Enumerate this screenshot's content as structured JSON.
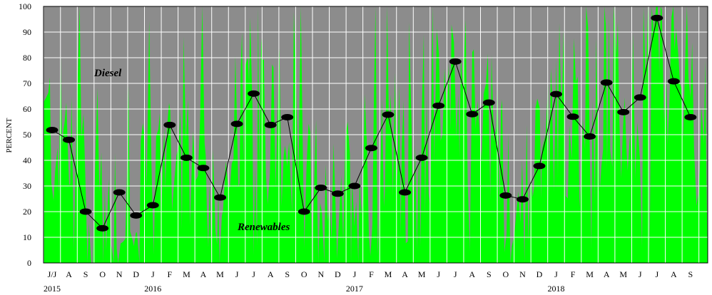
{
  "chart_data": {
    "type": "line",
    "title": "",
    "xlabel": "",
    "ylabel": "PERCENT",
    "ylim": [
      0,
      100
    ],
    "yticks": [
      0,
      10,
      20,
      30,
      40,
      50,
      60,
      70,
      80,
      90,
      100
    ],
    "grid": true,
    "month_labels": [
      "J/J",
      "A",
      "S",
      "O",
      "N",
      "D",
      "J",
      "F",
      "M",
      "A",
      "M",
      "J",
      "J",
      "A",
      "S",
      "O",
      "N",
      "D",
      "J",
      "F",
      "M",
      "A",
      "M",
      "J",
      "J",
      "A",
      "S",
      "O",
      "N",
      "D",
      "J",
      "F",
      "M",
      "A",
      "M",
      "J",
      "J",
      "A",
      "S"
    ],
    "year_labels": [
      {
        "text": "2015",
        "month_index": 0
      },
      {
        "text": "2016",
        "month_index": 6
      },
      {
        "text": "2017",
        "month_index": 18
      },
      {
        "text": "2018",
        "month_index": 30
      }
    ],
    "series": [
      {
        "values": [
          51.8,
          48,
          20,
          13.5,
          27.5,
          18.5,
          22.5,
          53.8,
          41,
          37,
          25.5,
          54.2,
          66,
          53.8,
          56.8,
          20,
          29.3,
          27,
          30,
          44.8,
          57.8,
          27.5,
          41,
          61.3,
          78.5,
          58,
          62.5,
          26.3,
          24.8,
          37.8,
          65.8,
          57,
          49.3,
          70.3,
          58.8,
          64.5,
          95.5,
          70.8,
          56.8
        ]
      }
    ],
    "annotations": [
      {
        "text": "Diesel"
      },
      {
        "text": "Renewables"
      }
    ],
    "colors": {
      "diesel_area": "#8c8c8c",
      "renewables_area": "#00ff00",
      "line": "#000000",
      "marker": "#000000",
      "grid": "#ffffff"
    }
  }
}
